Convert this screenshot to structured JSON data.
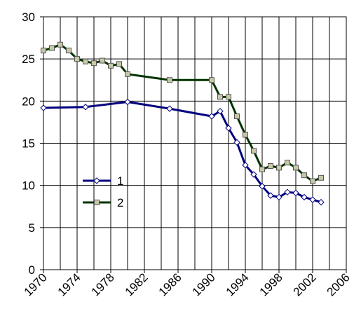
{
  "chart_data": {
    "type": "line",
    "xlim": [
      1970,
      2006
    ],
    "xticks": [
      1970,
      1974,
      1978,
      1982,
      1986,
      1990,
      1994,
      1998,
      2002,
      2006
    ],
    "x_minor_step": 2,
    "ylim": [
      0,
      30
    ],
    "yticks": [
      0,
      5,
      10,
      15,
      20,
      25,
      30
    ],
    "grid": true,
    "legend": "center-left",
    "series": [
      {
        "name": "1",
        "color": "#000080",
        "marker": "diamond",
        "x": [
          1970,
          1975,
          1980,
          1985,
          1990,
          1991,
          1992,
          1993,
          1994,
          1995,
          1996,
          1997,
          1998,
          1999,
          2000,
          2001,
          2002,
          2003
        ],
        "values": [
          19.2,
          19.3,
          19.9,
          19.1,
          18.2,
          18.8,
          16.8,
          15.1,
          12.4,
          11.3,
          9.9,
          8.8,
          8.6,
          9.2,
          9.1,
          8.6,
          8.3,
          8.0
        ]
      },
      {
        "name": "2",
        "color": "#003300",
        "marker": "square",
        "x": [
          1970,
          1971,
          1972,
          1973,
          1974,
          1975,
          1976,
          1977,
          1978,
          1979,
          1980,
          1985,
          1990,
          1991,
          1992,
          1993,
          1994,
          1995,
          1996,
          1997,
          1998,
          1999,
          2000,
          2001,
          2002,
          2003
        ],
        "values": [
          26.0,
          26.3,
          26.7,
          26.0,
          25.0,
          24.7,
          24.5,
          24.8,
          24.2,
          24.4,
          23.2,
          22.5,
          22.5,
          20.5,
          20.5,
          18.2,
          16.0,
          14.1,
          11.9,
          12.3,
          12.1,
          12.7,
          12.1,
          11.2,
          10.5,
          10.9
        ]
      }
    ]
  }
}
